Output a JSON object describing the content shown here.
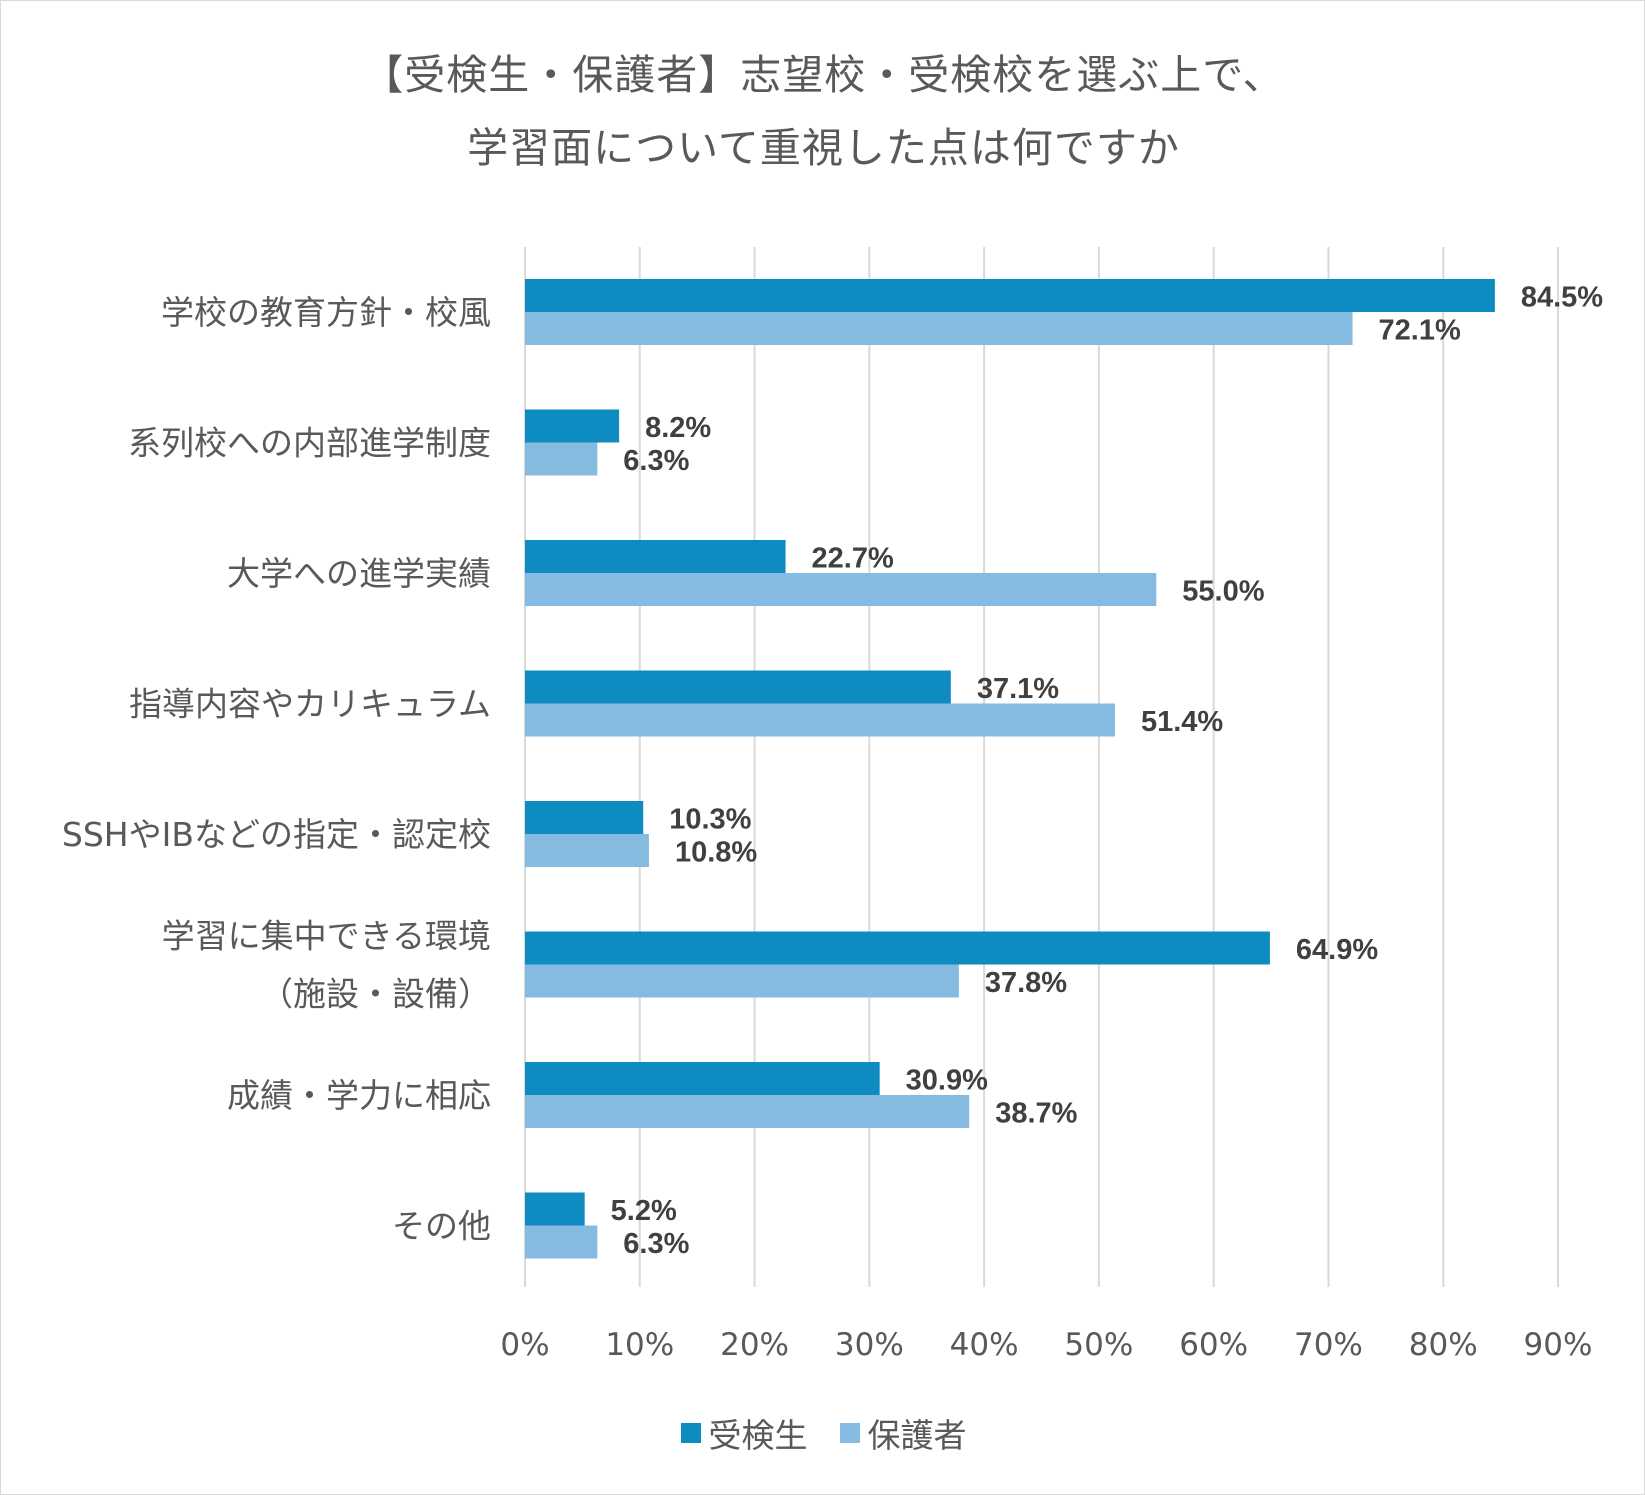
{
  "title": {
    "line1": "【受検生・保護者】志望校・受検校を選ぶ上で、",
    "line2": "学習面について重視した点は何ですか"
  },
  "colors": {
    "series1": "#0e8bc0",
    "series2": "#86bbe1",
    "grid": "#d9d9d9",
    "text": "#595959",
    "label": "#404040"
  },
  "chart_data": {
    "type": "bar",
    "orientation": "horizontal",
    "categories": [
      [
        "学校の教育方針・校風"
      ],
      [
        "系列校への内部進学制度"
      ],
      [
        "大学への進学実績"
      ],
      [
        "指導内容やカリキュラム"
      ],
      [
        "SSHやIBなどの指定・認定校"
      ],
      [
        "学習に集中できる環境",
        "（施設・設備）"
      ],
      [
        "成績・学力に相応"
      ],
      [
        "その他"
      ]
    ],
    "series": [
      {
        "name": "受検生",
        "values": [
          84.5,
          8.2,
          22.7,
          37.1,
          10.3,
          64.9,
          30.9,
          5.2
        ],
        "labels": [
          "84.5%",
          "8.2%",
          "22.7%",
          "37.1%",
          "10.3%",
          "64.9%",
          "30.9%",
          "5.2%"
        ]
      },
      {
        "name": "保護者",
        "values": [
          72.1,
          6.3,
          55.0,
          51.4,
          10.8,
          37.8,
          38.7,
          6.3
        ],
        "labels": [
          "72.1%",
          "6.3%",
          "55.0%",
          "51.4%",
          "10.8%",
          "37.8%",
          "38.7%",
          "6.3%"
        ]
      }
    ],
    "xlim": [
      0,
      90
    ],
    "xticks": [
      "0%",
      "10%",
      "20%",
      "30%",
      "40%",
      "50%",
      "60%",
      "70%",
      "80%",
      "90%"
    ],
    "grid": true,
    "legend": "bottom"
  }
}
